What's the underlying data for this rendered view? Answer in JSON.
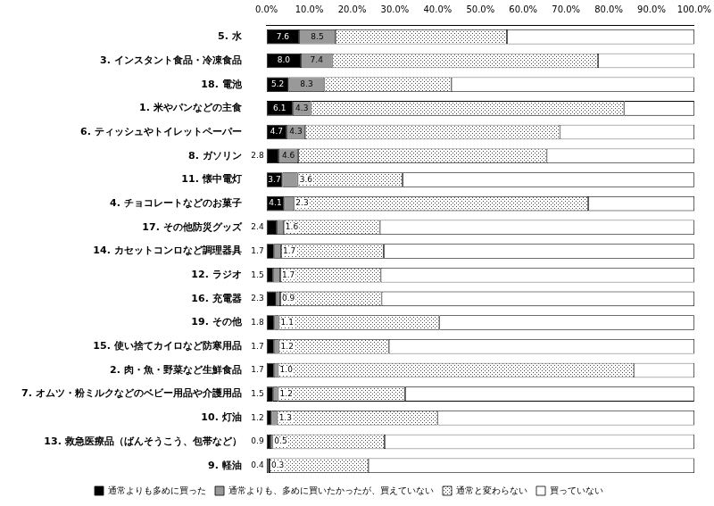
{
  "chart_data": {
    "type": "bar",
    "orientation": "horizontal",
    "stacked": true,
    "grid": false,
    "legend": "bottom",
    "categories": [
      "5. 水",
      "3. インスタント食品・冷凍食品",
      "18. 電池",
      "1. 米やパンなどの主食",
      "6. ティッシュやトイレットペーパー",
      "8. ガソリン",
      "11. 懐中電灯",
      "4. チョコレートなどのお菓子",
      "17. その他防災グッズ",
      "14. カセットコンロなど調理器具",
      "12. ラジオ",
      "16. 充電器",
      "19. その他",
      "15. 使い捨てカイロなど防寒用品",
      "2. 肉・魚・野菜など生鮮食品",
      "7. オムツ・粉ミルクなどのベビー用品や介護用品",
      "10. 灯油",
      "13. 救急医療品（ばんそうこう、包帯など）",
      "9. 軽油"
    ],
    "series": [
      {
        "name": "通常よりも多めに買った",
        "color": "#000000",
        "data_labels": true,
        "values": [
          7.6,
          8.0,
          5.2,
          6.1,
          4.7,
          2.8,
          3.7,
          4.1,
          2.4,
          1.7,
          1.5,
          2.3,
          1.8,
          1.7,
          1.7,
          1.5,
          1.2,
          0.9,
          0.4
        ],
        "value_labels": [
          "7.6",
          "8.0",
          "5.2",
          "6.1",
          "4.7",
          "2.8",
          "3.7",
          "4.1",
          "2.4",
          "1.7",
          "1.5",
          "2.3",
          "1.8",
          "1.7",
          "1.7",
          "1.5",
          "1.2",
          "0.9",
          "0.4"
        ]
      },
      {
        "name": "通常よりも、多めに買いたかったが、買えていない",
        "color": "#999999",
        "data_labels": true,
        "values": [
          8.5,
          7.4,
          8.3,
          4.3,
          4.3,
          4.6,
          3.6,
          2.3,
          1.6,
          1.7,
          1.7,
          0.9,
          1.1,
          1.2,
          1.0,
          1.2,
          1.3,
          0.5,
          0.3
        ],
        "value_labels": [
          "8.5",
          "7.4",
          "8.3",
          "4.3",
          "4.3",
          "4.6",
          "3.6",
          "2.3",
          "1.6",
          "1.7",
          "1.7",
          "0.9",
          "1.1",
          "1.2",
          "1.0",
          "1.2",
          "1.3",
          "0.5",
          "0.3"
        ]
      },
      {
        "name": "通常と変わらない",
        "color": "#ffffff",
        "marker": "dotted",
        "values": [
          40.1,
          62.1,
          29.7,
          73.2,
          59.6,
          58.1,
          24.5,
          68.8,
          22.5,
          24.0,
          23.5,
          23.7,
          37.5,
          25.7,
          83.2,
          29.7,
          37.5,
          26.2,
          23.1
        ]
      },
      {
        "name": "買っていない",
        "color": "#ffffff",
        "values": [
          43.8,
          22.5,
          56.8,
          16.4,
          31.4,
          34.5,
          68.2,
          24.8,
          73.5,
          72.6,
          73.3,
          73.1,
          59.6,
          71.4,
          14.1,
          67.6,
          60.0,
          72.4,
          76.2
        ]
      }
    ],
    "xlim": [
      0,
      100
    ],
    "xticks": [
      {
        "value": 0,
        "label": "0.0%"
      },
      {
        "value": 10,
        "label": "10.0%"
      },
      {
        "value": 20,
        "label": "20.0%"
      },
      {
        "value": 30,
        "label": "30.0%"
      },
      {
        "value": 40,
        "label": "40.0%"
      },
      {
        "value": 50,
        "label": "50.0%"
      },
      {
        "value": 60,
        "label": "60.0%"
      },
      {
        "value": 70,
        "label": "70.0%"
      },
      {
        "value": 80,
        "label": "80.0%"
      },
      {
        "value": 90,
        "label": "90.0%"
      },
      {
        "value": 100,
        "label": "100.0%"
      }
    ]
  }
}
